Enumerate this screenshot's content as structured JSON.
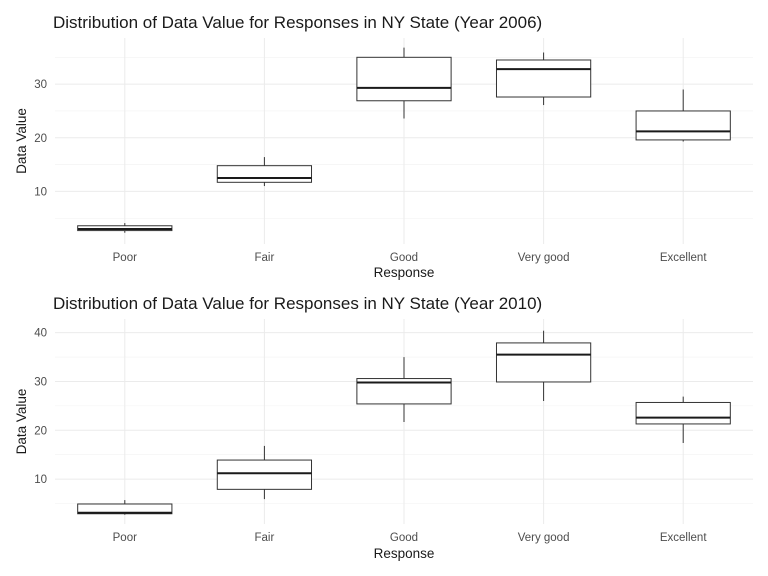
{
  "chart_data": [
    {
      "type": "box",
      "title": "Distribution of Data Value for Responses in NY State (Year 2006)",
      "xlabel": "Response",
      "ylabel": "Data Value",
      "categories": [
        "Poor",
        "Fair",
        "Good",
        "Very good",
        "Excellent"
      ],
      "ylim": [
        0.2,
        38.6
      ],
      "yticks": [
        10,
        20,
        30
      ],
      "grid": true,
      "boxes": [
        {
          "category": "Poor",
          "min": 2.3,
          "q1": 2.7,
          "median": 3.0,
          "q3": 3.6,
          "max": 4.1
        },
        {
          "category": "Fair",
          "min": 11.0,
          "q1": 11.7,
          "median": 12.5,
          "q3": 14.8,
          "max": 16.4
        },
        {
          "category": "Good",
          "min": 23.6,
          "q1": 26.9,
          "median": 29.3,
          "q3": 35.0,
          "max": 36.8
        },
        {
          "category": "Very good",
          "min": 26.1,
          "q1": 27.6,
          "median": 32.8,
          "q3": 34.5,
          "max": 35.9
        },
        {
          "category": "Excellent",
          "min": 19.3,
          "q1": 19.6,
          "median": 21.2,
          "q3": 25.0,
          "max": 29.0
        }
      ]
    },
    {
      "type": "box",
      "title": "Distribution of Data Value for Responses in NY State (Year 2010)",
      "xlabel": "Response",
      "ylabel": "Data Value",
      "categories": [
        "Poor",
        "Fair",
        "Good",
        "Very good",
        "Excellent"
      ],
      "ylim": [
        0.8,
        42.8
      ],
      "yticks": [
        10,
        20,
        30,
        40
      ],
      "grid": true,
      "boxes": [
        {
          "category": "Poor",
          "min": 2.7,
          "q1": 2.9,
          "median": 3.1,
          "q3": 4.9,
          "max": 5.7
        },
        {
          "category": "Fair",
          "min": 5.9,
          "q1": 7.9,
          "median": 11.2,
          "q3": 13.9,
          "max": 16.8
        },
        {
          "category": "Good",
          "min": 21.7,
          "q1": 25.4,
          "median": 29.8,
          "q3": 30.6,
          "max": 35.0
        },
        {
          "category": "Very good",
          "min": 26.0,
          "q1": 29.9,
          "median": 35.5,
          "q3": 37.9,
          "max": 40.4
        },
        {
          "category": "Excellent",
          "min": 17.4,
          "q1": 21.3,
          "median": 22.6,
          "q3": 25.7,
          "max": 26.9
        }
      ]
    }
  ]
}
